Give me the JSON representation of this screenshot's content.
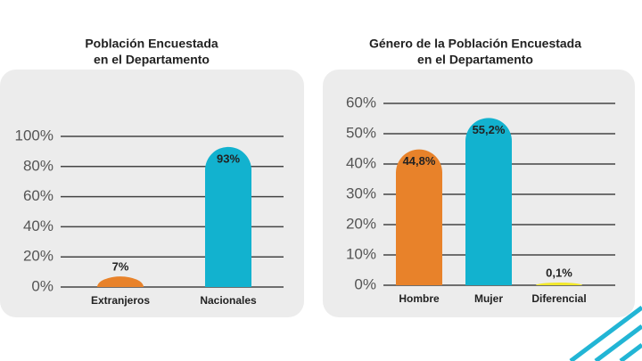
{
  "chart_data": [
    {
      "type": "bar",
      "title": [
        "Población Encuestada",
        "en el Departamento"
      ],
      "categories": [
        "Extranjeros",
        "Nacionales"
      ],
      "values": [
        7,
        93
      ],
      "value_labels": [
        "7%",
        "93%"
      ],
      "colors": [
        "#e8822a",
        "#12b2cf"
      ],
      "ylim": [
        0,
        100
      ],
      "yticks": [
        {
          "value": 0,
          "label": "0%"
        },
        {
          "value": 20,
          "label": "20%"
        },
        {
          "value": 40,
          "label": "40%"
        },
        {
          "value": 60,
          "label": "60%"
        },
        {
          "value": 80,
          "label": "80%"
        },
        {
          "value": 100,
          "label": "100%"
        }
      ],
      "grid": true
    },
    {
      "type": "bar",
      "title": [
        "Género de la Población Encuestada",
        "en el Departamento"
      ],
      "categories": [
        "Hombre",
        "Mujer",
        "Diferencial"
      ],
      "values": [
        44.8,
        55.2,
        0.1
      ],
      "value_labels": [
        "44,8%",
        "55,2%",
        "0,1%"
      ],
      "colors": [
        "#e8822a",
        "#12b2cf",
        "#f2e82a"
      ],
      "ylim": [
        0,
        60
      ],
      "yticks": [
        {
          "value": 0,
          "label": "0%"
        },
        {
          "value": 10,
          "label": "10%"
        },
        {
          "value": 20,
          "label": "20%"
        },
        {
          "value": 30,
          "label": "30%"
        },
        {
          "value": 40,
          "label": "40%"
        },
        {
          "value": 50,
          "label": "50%"
        },
        {
          "value": 60,
          "label": "60%"
        }
      ],
      "grid": true
    }
  ]
}
